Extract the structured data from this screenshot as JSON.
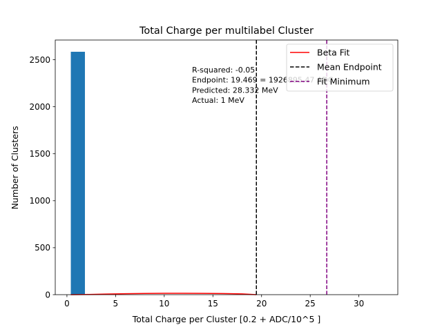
{
  "chart_data": {
    "type": "bar",
    "title": "Total Charge per multilabel Cluster",
    "xlabel": "Total Charge per Cluster [0.2 + ADC/10^5 ]",
    "ylabel": "Number of Clusters",
    "xlim": [
      -1.2,
      34
    ],
    "ylim": [
      0,
      2710
    ],
    "xticks": [
      0,
      5,
      10,
      15,
      20,
      25,
      30
    ],
    "yticks": [
      0,
      500,
      1000,
      1500,
      2000,
      2500
    ],
    "grid": false,
    "legend_position": "upper-right",
    "series": [
      {
        "name": "",
        "kind": "histogram",
        "color": "#1f77b4",
        "bins": [
          {
            "x0": 0.4,
            "x1": 1.85,
            "count": 2585
          }
        ]
      }
    ],
    "lines": [
      {
        "name": "Beta Fit",
        "style": "solid",
        "color": "#ff0000",
        "x": [
          0.4,
          2,
          4,
          6,
          8,
          10,
          12,
          14,
          16,
          18,
          19.47
        ],
        "y": [
          0,
          2,
          6,
          10,
          13,
          15,
          15,
          14,
          12,
          8,
          0
        ]
      },
      {
        "name": "Mean Endpoint",
        "style": "dashed",
        "color": "#000000",
        "xvalue": 19.469
      },
      {
        "name": "Fit Minimum",
        "style": "dashed",
        "color": "#800080",
        "xvalue": 26.7
      }
    ],
    "annotations": [
      "R-squared: -0.05",
      "Endpoint: 19.469 = 1926895.47 ADC",
      "Predicted: 28.332 MeV",
      "Actual: 1 MeV"
    ]
  }
}
